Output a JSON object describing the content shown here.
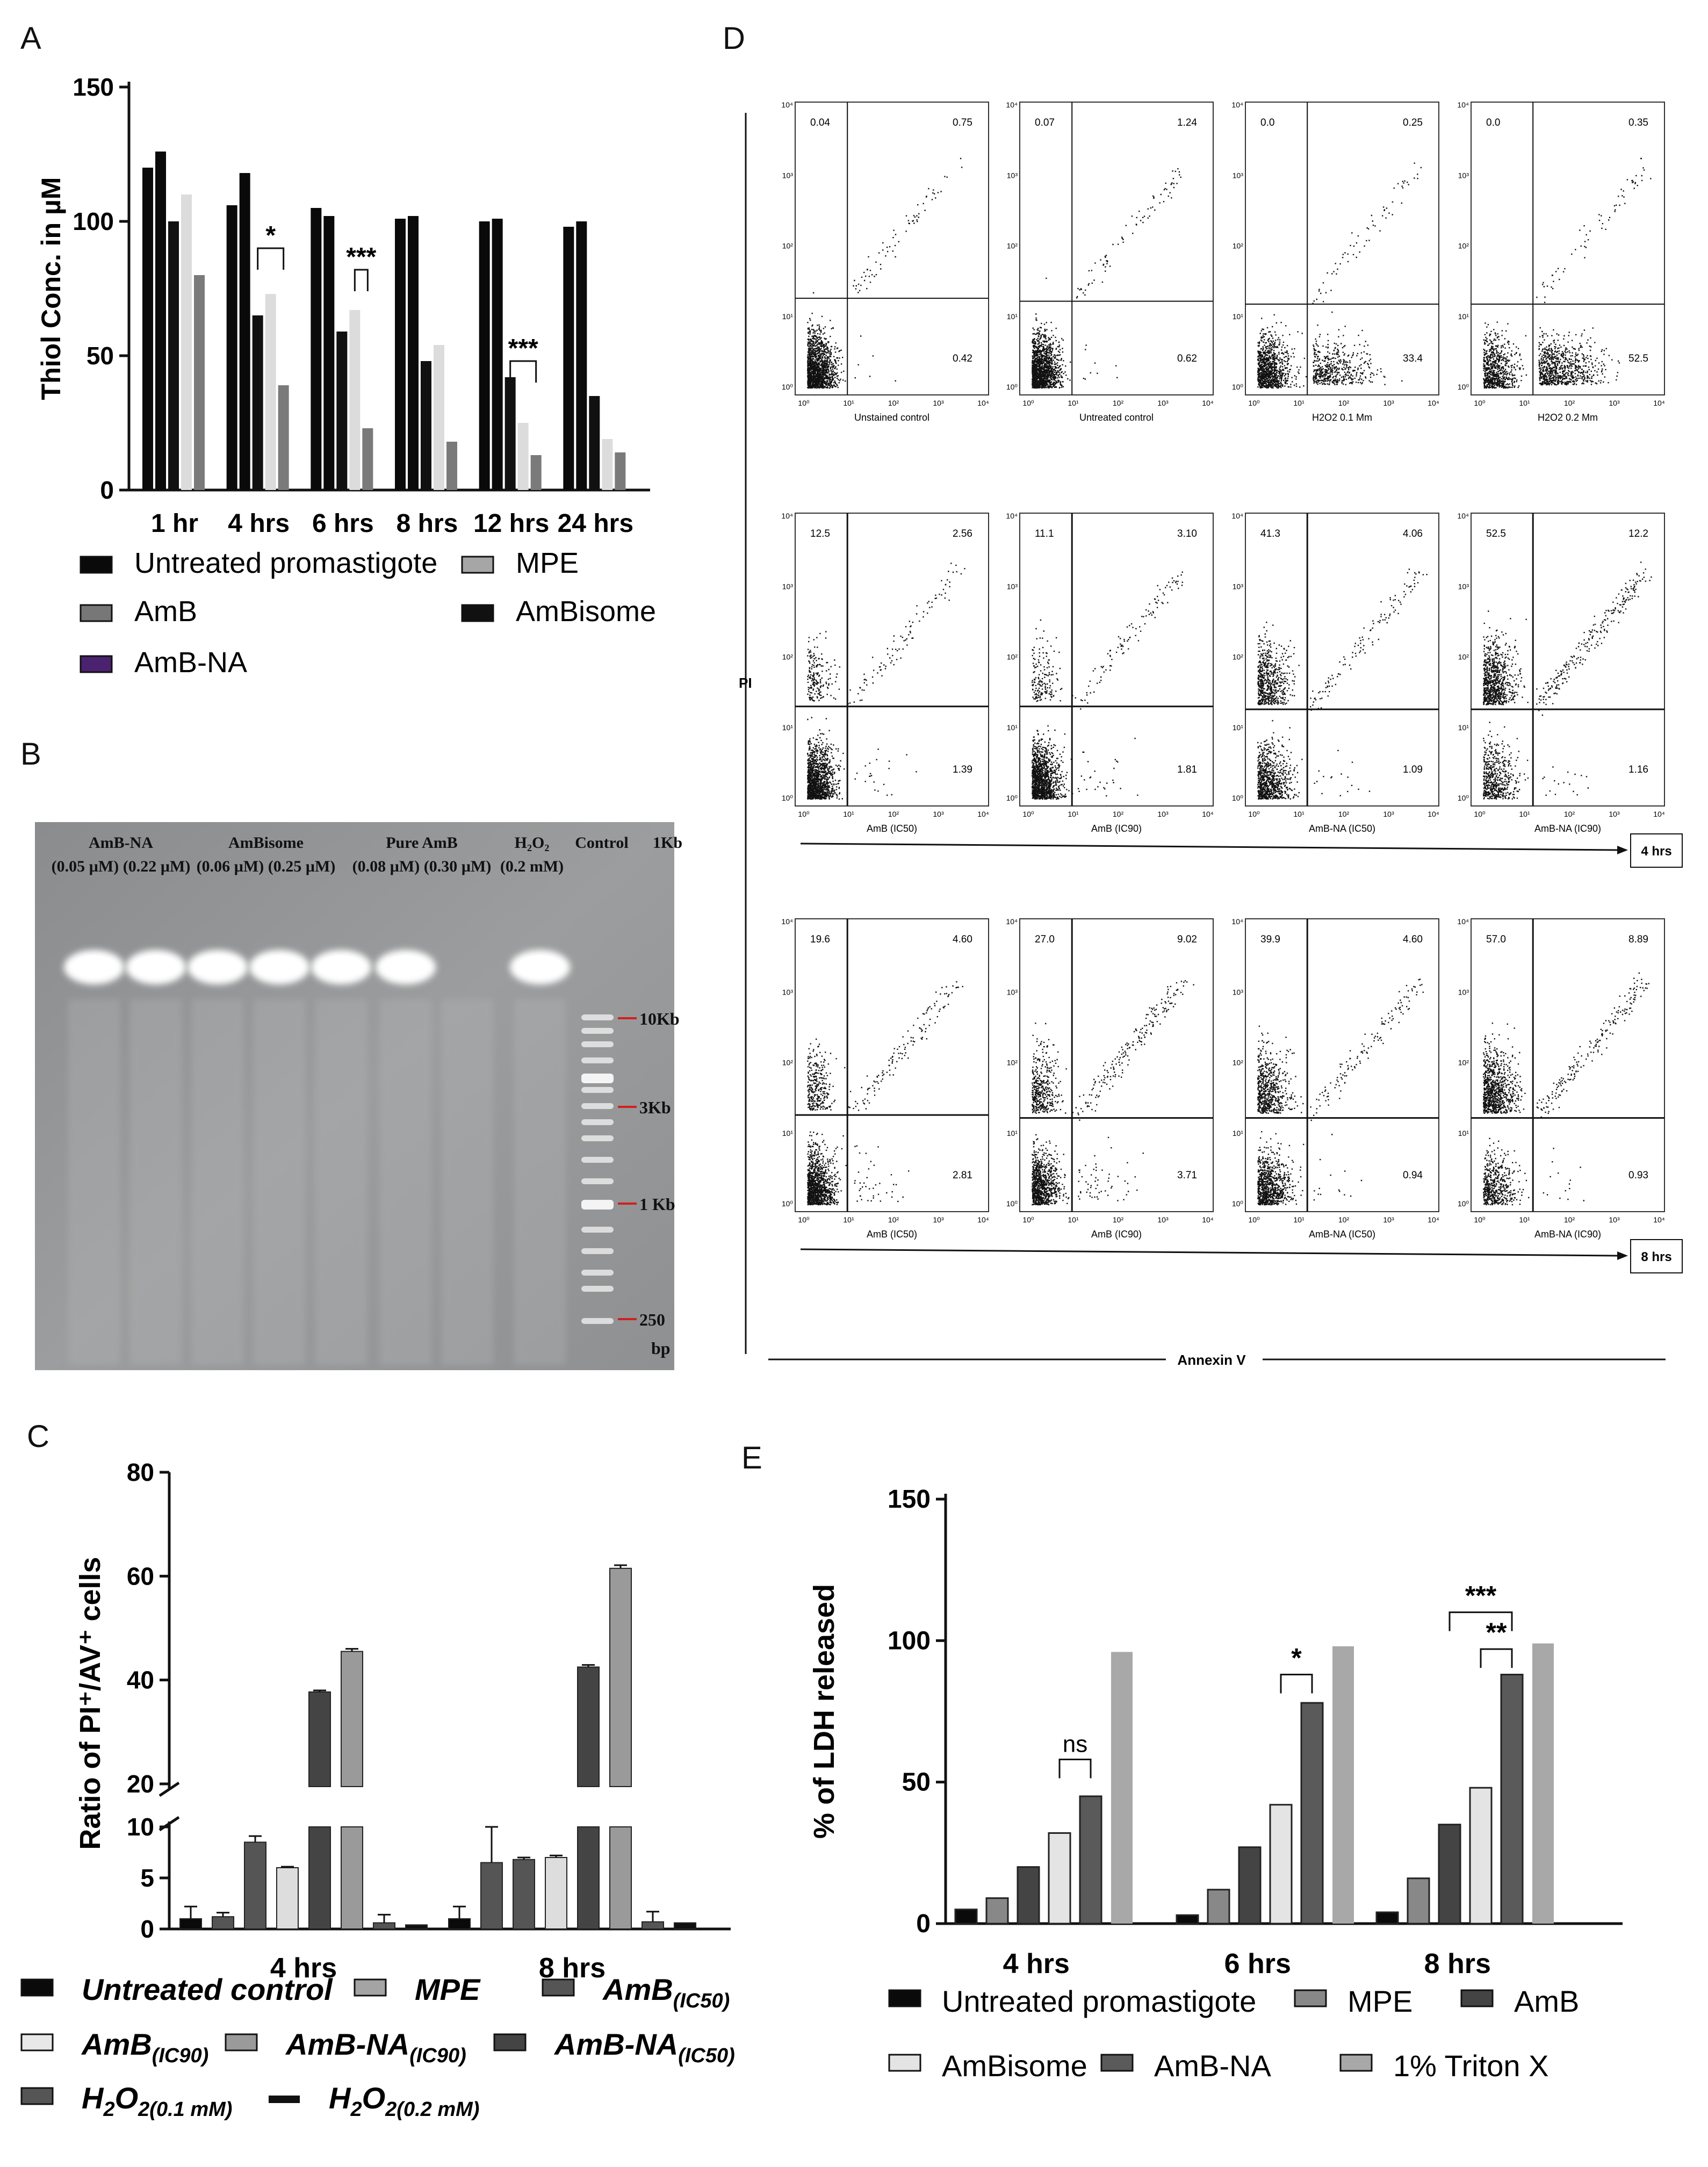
{
  "panels": {
    "A": "A",
    "B": "B",
    "C": "C",
    "D": "D",
    "E": "E"
  },
  "chart_data": [
    {
      "id": "A",
      "type": "bar",
      "ylabel": "Thiol Conc. in µM",
      "yticks": [
        "0",
        "50",
        "100",
        "150"
      ],
      "ylim": [
        0,
        150
      ],
      "categories": [
        "1 hr",
        "4 hrs",
        "6 hrs",
        "8 hrs",
        "12 hrs",
        "24 hrs"
      ],
      "series": [
        {
          "name": "Untreated promastigote",
          "values": [
            120,
            106,
            105,
            101,
            100,
            98
          ]
        },
        {
          "name": "MPE",
          "values": [
            126,
            118,
            102,
            102,
            101,
            100
          ]
        },
        {
          "name": "AmB",
          "values": [
            100,
            65,
            59,
            48,
            42,
            35
          ]
        },
        {
          "name": "AmBisome",
          "values": [
            110,
            73,
            67,
            54,
            25,
            19
          ]
        },
        {
          "name": "AmB-NA",
          "values": [
            80,
            39,
            23,
            18,
            13,
            14
          ]
        }
      ],
      "colors": [
        "#0a0a0a",
        "#0a0a0a",
        "#111111",
        "#dcdcdc",
        "#7a7a7a"
      ],
      "significance": [
        "*",
        "***",
        "***"
      ],
      "legend": [
        "Untreated promastigote",
        "MPE",
        "AmB",
        "AmBisome",
        "AmB-NA"
      ]
    },
    {
      "id": "C",
      "type": "bar",
      "ylabel": "Ratio of PI⁺/AV⁺ cells",
      "yticks": [
        "0",
        "5",
        "10",
        "20",
        "40",
        "60",
        "80"
      ],
      "categories": [
        "4 hrs",
        "8 hrs"
      ],
      "series": [
        {
          "name": "Untreated control",
          "values": [
            1.0,
            1.0
          ],
          "errors": [
            1.2,
            1.2
          ]
        },
        {
          "name": "MPE",
          "values": [
            1.2,
            6.5
          ],
          "errors": [
            0.4,
            3.5
          ]
        },
        {
          "name": "AmB(IC50)",
          "values": [
            8.5,
            6.8
          ],
          "errors": [
            0.6,
            0.2
          ]
        },
        {
          "name": "AmB(IC90)",
          "values": [
            6.0,
            7.0
          ],
          "errors": [
            0.1,
            0.2
          ]
        },
        {
          "name": "AmB-NA(IC50)",
          "values": [
            37.7,
            42.5
          ],
          "errors": [
            0.3,
            0.4
          ]
        },
        {
          "name": "AmB-NA(IC90)",
          "values": [
            45.5,
            61.5
          ],
          "errors": [
            0.5,
            0.6
          ]
        },
        {
          "name": "H2O2(0.1 mM)",
          "values": [
            0.6,
            0.7
          ],
          "errors": [
            0.8,
            1.0
          ]
        },
        {
          "name": "H2O2(0.2 mM)",
          "values": [
            0.4,
            0.6
          ],
          "errors": [
            0,
            0
          ]
        }
      ],
      "colors": [
        "#0a0a0a",
        "#555555",
        "#555555",
        "#dddddd",
        "#444444",
        "#9a9a9a",
        "#555555",
        "#111111"
      ],
      "legend": {
        "untreated": "Untreated control",
        "mpe": "MPE",
        "amb50": "AmB",
        "amb50_sub": "(IC50)",
        "amb90": "AmB",
        "amb90_sub": "(IC90)",
        "na90": "AmB-NA",
        "na90_sub": "(IC90)",
        "na50": "AmB-NA",
        "na50_sub": "(IC50)",
        "h01": "H",
        "h01_sub2": "2",
        "h01_o": "O",
        "h01_sub": "2(0.1 mM)",
        "h02": "H",
        "h02_sub2": "2",
        "h02_o": "O",
        "h02_sub": "2(0.2 mM)"
      }
    },
    {
      "id": "E",
      "type": "bar",
      "ylabel": "% of LDH released",
      "yticks": [
        "0",
        "50",
        "100",
        "150"
      ],
      "ylim": [
        0,
        150
      ],
      "categories": [
        "4 hrs",
        "6 hrs",
        "8 hrs"
      ],
      "series": [
        {
          "name": "Untreated promastigote",
          "values": [
            5,
            3,
            4
          ]
        },
        {
          "name": "MPE",
          "values": [
            9,
            12,
            16
          ]
        },
        {
          "name": "AmB",
          "values": [
            20,
            27,
            35
          ]
        },
        {
          "name": "AmBisome",
          "values": [
            32,
            42,
            48
          ]
        },
        {
          "name": "AmB-NA",
          "values": [
            45,
            78,
            88
          ]
        },
        {
          "name": "1% Triton X",
          "values": [
            96,
            98,
            99
          ]
        }
      ],
      "colors": [
        "#0a0a0a",
        "#888888",
        "#444444",
        "#e4e4e4",
        "#5a5a5a",
        "#a8a8a8"
      ],
      "significance": [
        "ns",
        "*",
        "***",
        "**"
      ],
      "legend": [
        "Untreated promastigote",
        "MPE",
        "AmB",
        "AmBisome",
        "AmB-NA",
        "1% Triton X"
      ]
    },
    {
      "id": "D",
      "type": "scatter",
      "xlabel": "Annexin V",
      "ylabel": "PI",
      "rows": [
        {
          "time": "",
          "plots": [
            {
              "label": "Unstained control",
              "q": [
                "0.04",
                "0.75",
                "0.42"
              ]
            },
            {
              "label": "Untreated  control",
              "q": [
                "0.07",
                "1.24",
                "0.62"
              ]
            },
            {
              "label": "H2O2 0.1 Mm",
              "q": [
                "0.0",
                "0.25",
                "33.4"
              ]
            },
            {
              "label": "H2O2 0.2 Mm",
              "q": [
                "0.0",
                "0.35",
                "52.5"
              ]
            }
          ]
        },
        {
          "time": "4 hrs",
          "plots": [
            {
              "label": "AmB (IC50)",
              "q": [
                "12.5",
                "2.56",
                "1.39"
              ]
            },
            {
              "label": "AmB (IC90)",
              "q": [
                "11.1",
                "3.10",
                "1.81"
              ]
            },
            {
              "label": "AmB-NA (IC50)",
              "q": [
                "41.3",
                "4.06",
                "1.09"
              ]
            },
            {
              "label": "AmB-NA (IC90)",
              "q": [
                "52.5",
                "12.2",
                "1.16"
              ]
            }
          ]
        },
        {
          "time": "8 hrs",
          "plots": [
            {
              "label": "AmB (IC50)",
              "q": [
                "19.6",
                "4.60",
                "2.81"
              ]
            },
            {
              "label": "AmB (IC90)",
              "q": [
                "27.0",
                "9.02",
                "3.71"
              ]
            },
            {
              "label": "AmB-NA (IC50)",
              "q": [
                "39.9",
                "4.60",
                "0.94"
              ]
            },
            {
              "label": "AmB-NA (IC90)",
              "q": [
                "57.0",
                "8.89",
                "0.93"
              ]
            }
          ]
        }
      ],
      "axis_ticks": [
        "10⁰",
        "10¹",
        "10²",
        "10³",
        "10⁴"
      ]
    }
  ],
  "gel": {
    "headers": [
      {
        "line1": "AmB-NA",
        "line2": "(0.05 µM)  (0.22 µM)"
      },
      {
        "line1": "AmBisome",
        "line2": "(0.06 µM) (0.25 µM)"
      },
      {
        "line1": "Pure AmB",
        "line2": "(0.08 µM) (0.30 µM)"
      },
      {
        "line1": "H₂O₂",
        "line2": "(0.2 mM)"
      },
      {
        "line1": "Control",
        "line2": ""
      }
    ],
    "ladder_top": "1Kb",
    "markers": [
      "10Kb",
      "3Kb",
      "1 Kb",
      "250",
      "bp"
    ]
  }
}
